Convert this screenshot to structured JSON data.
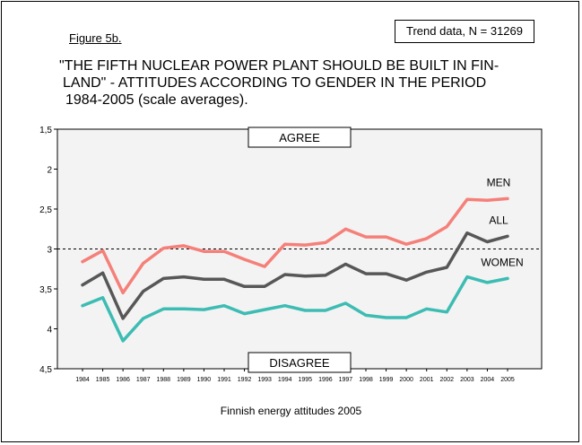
{
  "figure_label": "Figure 5b.",
  "trend_note": "Trend data, N = 31269",
  "title_lines": [
    "\"THE FIFTH NUCLEAR POWER PLANT SHOULD BE BUILT IN FIN-",
    "LAND\" - ATTITUDES ACCORDING TO GENDER IN THE PERIOD",
    "1984-2005 (scale averages)."
  ],
  "footer": "Finnish energy attitudes 2005",
  "colors": {
    "men": "#f5807a",
    "all": "#575757",
    "women": "#3dbcb3",
    "plot_bg": "#f3f3f3"
  },
  "chart_data": {
    "type": "line",
    "title": "\"THE FIFTH NUCLEAR POWER PLANT SHOULD BE BUILT IN FINLAND\" - ATTITUDES ACCORDING TO GENDER IN THE PERIOD 1984-2005 (scale averages).",
    "xlabel": "",
    "ylabel": "",
    "ylim": [
      1.5,
      4.5
    ],
    "y_inverted": true,
    "yticks": [
      "1,5",
      "2",
      "2,5",
      "3",
      "3,5",
      "4",
      "4,5"
    ],
    "ytick_values": [
      1.5,
      2,
      2.5,
      3,
      3.5,
      4,
      4.5
    ],
    "reference_line": 3,
    "top_annotation": "AGREE",
    "bottom_annotation": "DISAGREE",
    "x": [
      "1984",
      "1985",
      "1986",
      "1987",
      "1988",
      "1989",
      "1990",
      "1991",
      "1992",
      "1993",
      "1994",
      "1995",
      "1996",
      "1997",
      "1998",
      "1999",
      "2000",
      "2001",
      "2002",
      "2003",
      "2004",
      "2005"
    ],
    "series": [
      {
        "name": "MEN",
        "values": [
          3.16,
          3.02,
          3.55,
          3.18,
          2.99,
          2.96,
          3.03,
          3.03,
          3.13,
          3.22,
          2.94,
          2.95,
          2.92,
          2.75,
          2.85,
          2.85,
          2.94,
          2.87,
          2.72,
          2.38,
          2.39,
          2.37
        ]
      },
      {
        "name": "ALL",
        "values": [
          3.45,
          3.3,
          3.87,
          3.53,
          3.37,
          3.35,
          3.38,
          3.38,
          3.47,
          3.47,
          3.32,
          3.34,
          3.33,
          3.19,
          3.31,
          3.31,
          3.39,
          3.29,
          3.23,
          2.8,
          2.91,
          2.84
        ]
      },
      {
        "name": "WOMEN",
        "values": [
          3.71,
          3.61,
          4.15,
          3.87,
          3.75,
          3.75,
          3.76,
          3.71,
          3.81,
          3.76,
          3.71,
          3.77,
          3.77,
          3.68,
          3.83,
          3.86,
          3.86,
          3.75,
          3.79,
          3.35,
          3.42,
          3.37
        ]
      }
    ]
  }
}
